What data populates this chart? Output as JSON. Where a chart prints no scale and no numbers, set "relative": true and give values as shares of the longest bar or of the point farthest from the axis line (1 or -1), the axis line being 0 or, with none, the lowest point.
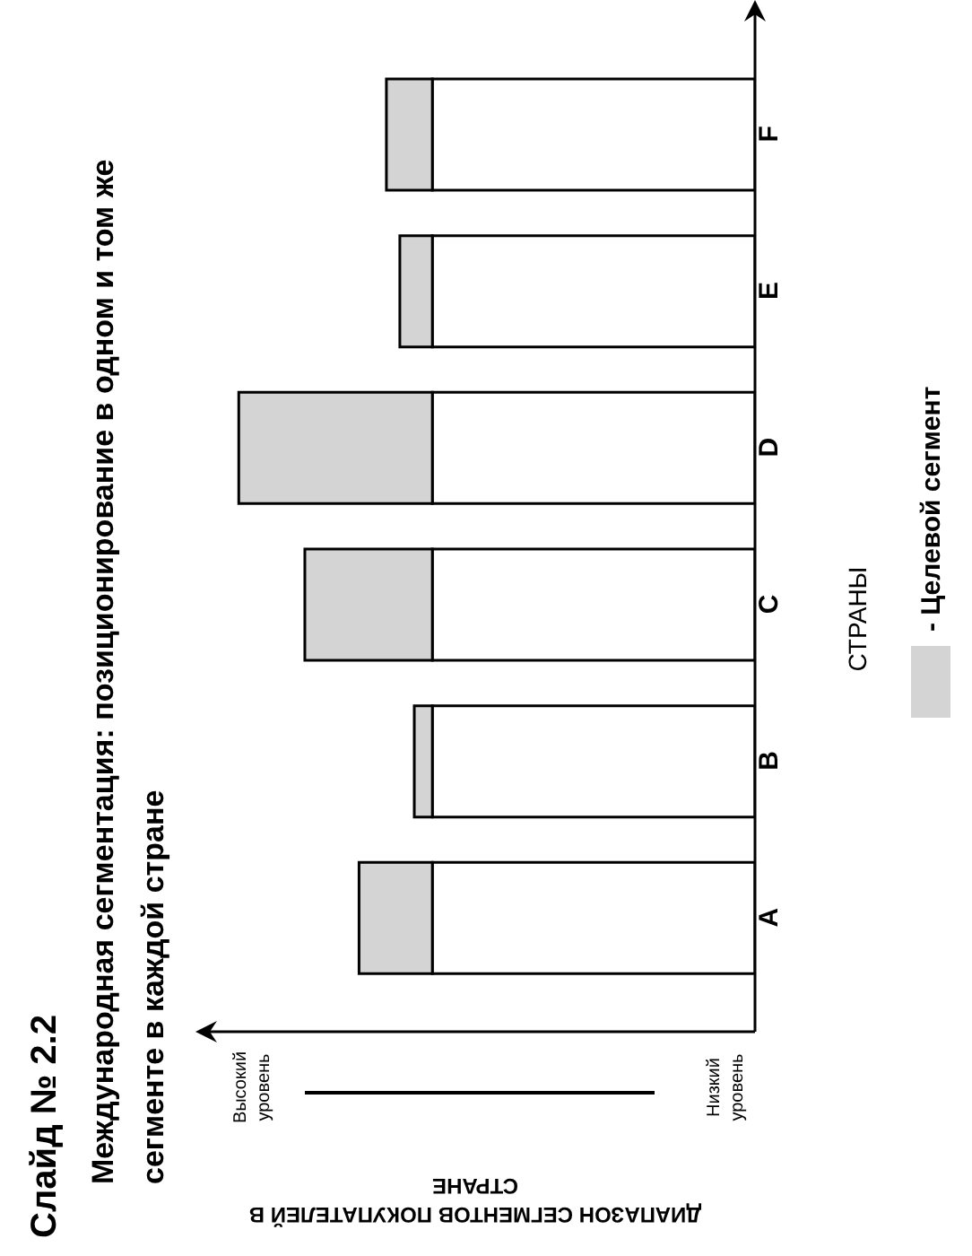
{
  "chart_data": {
    "type": "bar",
    "orientation": "horizontal",
    "title": "Слайд № 2.2",
    "subtitle": "Международная сегментация: позиционирование в одном и том же сегменте в каждой стране",
    "ylabel": "СТРАНЫ",
    "categories": [
      "F",
      "E",
      "D",
      "C",
      "B",
      "A"
    ],
    "relative": true,
    "stacked": true,
    "legend": "right",
    "annotations": [
      "Высокий уровень",
      "Низкий уровень",
      "ДИАПАЗОН СЕГМЕНТОВ ПОКУПАТЕЛЕЙ В СТРАНЕ"
    ],
    "series": [
      {
        "color": "#ffffff",
        "values": [
          0.625,
          0.625,
          0.625,
          0.625,
          0.625,
          0.625
        ]
      },
      {
        "name": "- Целевой сегмент",
        "color": "#d4d4d4",
        "values": [
          0.089,
          0.063,
          0.375,
          0.247,
          0.035,
          0.142
        ]
      }
    ]
  }
}
